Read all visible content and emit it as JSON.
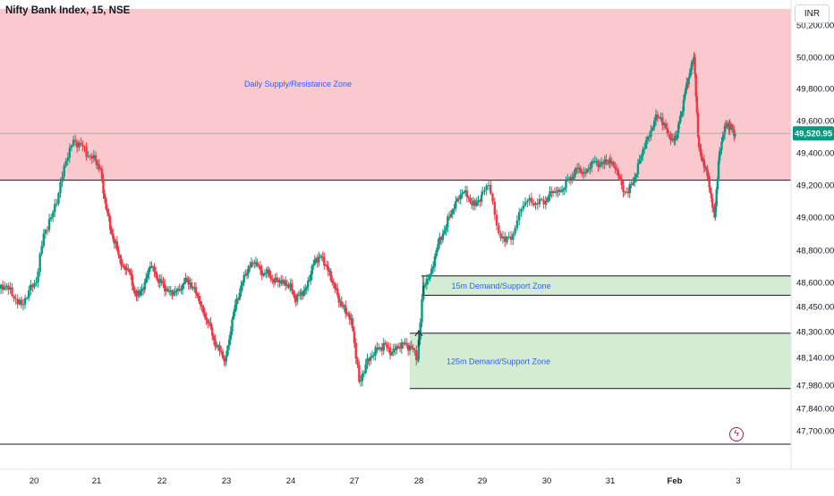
{
  "header": {
    "title": "Nifty Bank Index, 15, NSE",
    "currency": "INR"
  },
  "price_axis": {
    "labels": [
      "50,200.00",
      "50,000.00",
      "49,800.00",
      "49,600.00",
      "49,400.00",
      "49,200.00",
      "49,000.00",
      "48,800.00",
      "48,600.00",
      "48,450.00",
      "48,300.00",
      "48,140.00",
      "47,980.00",
      "47,840.00",
      "47,700.00"
    ],
    "last_price": "49,520.95"
  },
  "time_axis": {
    "labels": [
      "20",
      "21",
      "22",
      "23",
      "24",
      "27",
      "28",
      "29",
      "30",
      "31",
      "Feb",
      "3"
    ]
  },
  "zones": [
    {
      "name": "Daily Supply/Resistance Zone",
      "top": 50300,
      "bottom": 49230
    },
    {
      "name": "15m Demand/Support Zone",
      "top": 48640,
      "bottom": 48520
    },
    {
      "name": "125m Demand/Support Zone",
      "top": 48290,
      "bottom": 47960
    }
  ],
  "lines": {
    "last_price_value": 49520.95,
    "lower_boundary": 47620
  },
  "colors": {
    "up": "#089981",
    "down": "#f23645",
    "supply_zone": "#f9c9ce",
    "demand_zone": "#d4ecd4",
    "zone_text": "#2962ff",
    "last_price_tag": "#089981"
  },
  "icons": {
    "alert": "lightning-bolt-icon"
  },
  "chart_data": {
    "type": "candlestick",
    "title": "Nifty Bank Index, 15, NSE",
    "currency": "INR",
    "x_ticks": [
      "20",
      "21",
      "22",
      "23",
      "24",
      "27",
      "28",
      "29",
      "30",
      "31",
      "Feb",
      "3"
    ],
    "y_ticks": [
      50200,
      50000,
      49800,
      49600,
      49400,
      49200,
      49000,
      48800,
      48600,
      48450,
      48300,
      48140,
      47980,
      47840,
      47700
    ],
    "last_price": 49520.95,
    "approx_close_path": [
      {
        "day": "20",
        "values": [
          48580,
          48500,
          48460,
          48550,
          48600,
          48900,
          49000,
          49150,
          49350,
          49480,
          49450,
          49380,
          49350
        ]
      },
      {
        "day": "21",
        "values": [
          49300,
          49050,
          48900,
          48800,
          48700,
          48680,
          48550,
          48520,
          48600,
          48700,
          48650,
          48600
        ]
      },
      {
        "day": "22",
        "values": [
          48560,
          48520,
          48560,
          48600,
          48600,
          48530,
          48450,
          48350,
          48250,
          48180,
          48120
        ]
      },
      {
        "day": "23",
        "values": [
          48300,
          48500,
          48600,
          48700,
          48720,
          48680,
          48660,
          48620,
          48600,
          48610,
          48580
        ]
      },
      {
        "day": "24",
        "values": [
          48500,
          48520,
          48560,
          48650,
          48750,
          48760,
          48700,
          48600,
          48520,
          48450,
          48400,
          48300
        ]
      },
      {
        "day": "27",
        "values": [
          48000,
          48100,
          48150,
          48200,
          48220,
          48170,
          48200,
          48230,
          48200,
          48130
        ]
      },
      {
        "day": "28",
        "values": [
          48580,
          48650,
          48800,
          48900,
          49000,
          49100,
          49150,
          49120,
          49070,
          49140
        ]
      },
      {
        "day": "29",
        "values": [
          49200,
          48950,
          48850,
          48900,
          49050,
          49120,
          49080,
          49100
        ]
      },
      {
        "day": "30",
        "values": [
          49150,
          49170,
          49180,
          49250,
          49300,
          49280,
          49310,
          49350,
          49330,
          49360
        ]
      },
      {
        "day": "31",
        "values": [
          49300,
          49200,
          49150,
          49250,
          49380,
          49500,
          49600,
          49620,
          49520,
          49480
        ]
      },
      {
        "day": "Feb",
        "values": [
          49520,
          49650,
          49800,
          49900,
          50000,
          49500,
          49350,
          49300,
          49150,
          49000,
          49350,
          49500,
          49580,
          49560,
          49520.95
        ]
      }
    ]
  }
}
